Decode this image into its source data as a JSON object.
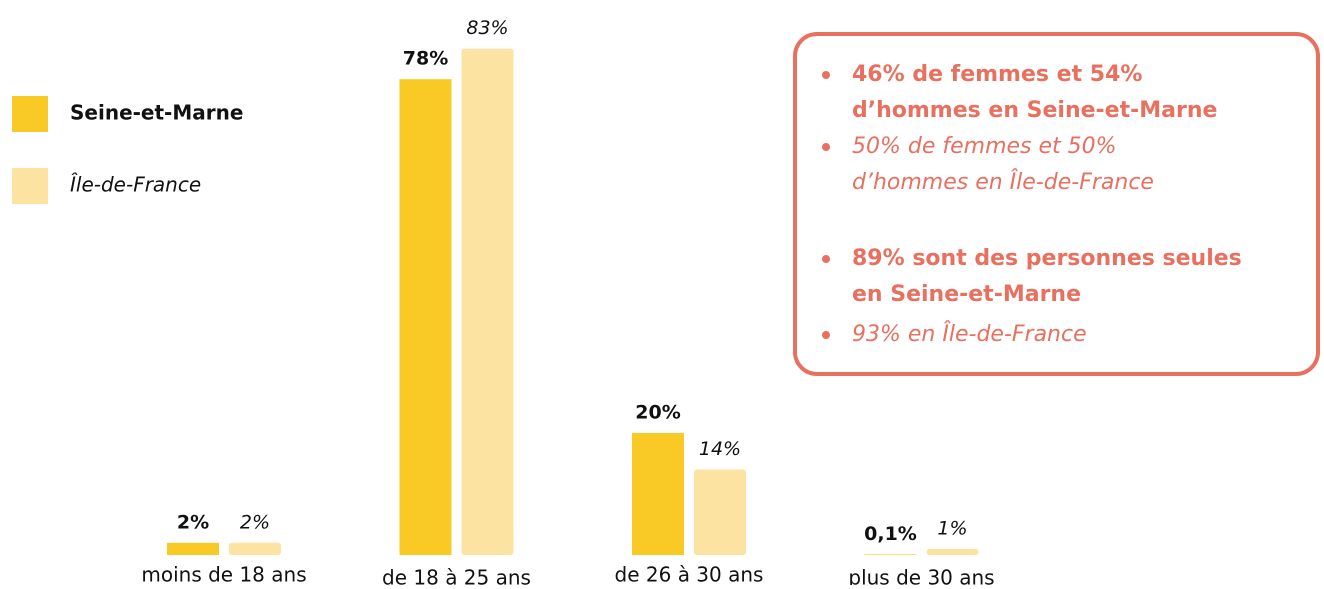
{
  "chart_data": {
    "type": "bar",
    "categories": [
      "moins de 18 ans",
      "de 18 à 25 ans",
      "de 26 à 30 ans",
      "plus de 30 ans"
    ],
    "series": [
      {
        "name": "Seine-et-Marne",
        "color": "#f9c926",
        "values": [
          2,
          78,
          20,
          0.1
        ],
        "value_labels": [
          "2%",
          "78%",
          "20%",
          "0,1%"
        ]
      },
      {
        "name": "Île-de-France",
        "color": "#fde3a1",
        "values": [
          2,
          83,
          14,
          1
        ],
        "value_labels": [
          "2%",
          "83%",
          "14%",
          "1%"
        ]
      }
    ],
    "annotations": [
      {
        "style": "bold",
        "lines": [
          "46% de femmes et 54%",
          "d’hommes en Seine-et-Marne"
        ]
      },
      {
        "style": "italic",
        "lines": [
          "50% de femmes et 50%",
          "d’hommes en Île-de-France"
        ]
      },
      {
        "style": "bold",
        "lines": [
          "89% sont des personnes seules",
          "en Seine-et-Marne"
        ]
      },
      {
        "style": "italic",
        "lines": [
          "93% en Île-de-France"
        ]
      }
    ],
    "annotation_color": "#e8705f"
  }
}
